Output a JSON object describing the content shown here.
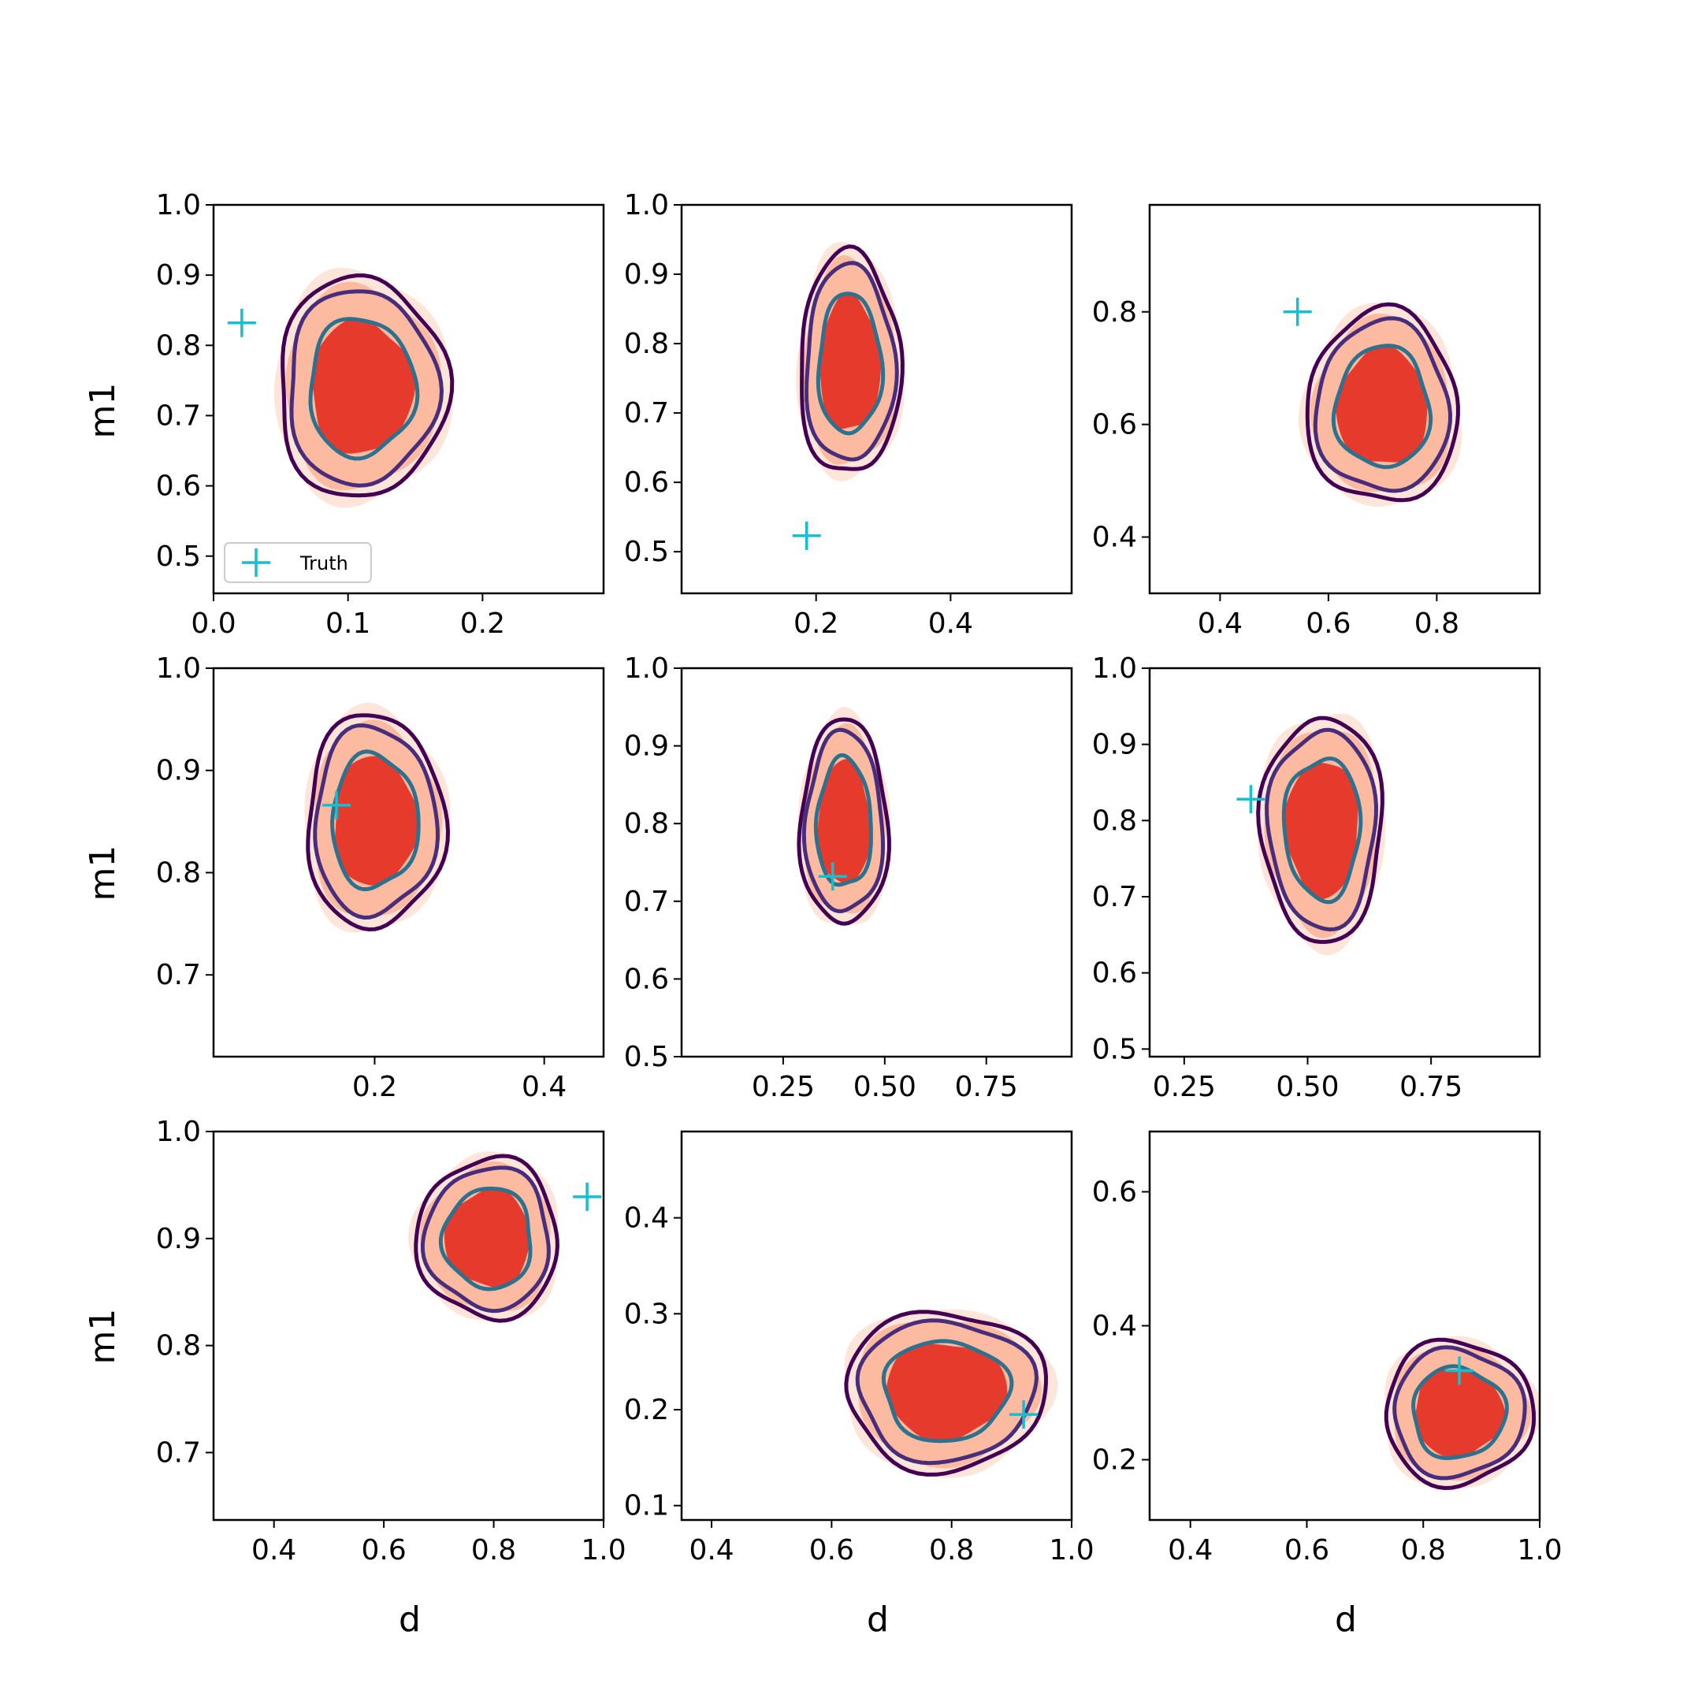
{
  "figure": {
    "xlabel": "d",
    "ylabel": "m1",
    "legend_label": "Truth",
    "legend_position": "lower-left",
    "colors": {
      "fill_outer": "#fee5d9",
      "fill_middle": "#fcbba1",
      "fill_inner": "#e63a2c",
      "contour_outer": "#440154",
      "contour_middle": "#472d7b",
      "contour_inner": "#2c728e",
      "truth_marker": "#17becf"
    }
  },
  "chart_data": [
    {
      "type": "contour",
      "row": 0,
      "col": 0,
      "xlim": [
        0.0,
        0.29
      ],
      "ylim": [
        0.447,
        1.0
      ],
      "xticks": [
        "0.0",
        "0.1",
        "0.2"
      ],
      "xtick_values": [
        0.0,
        0.1,
        0.2
      ],
      "yticks": [
        "0.5",
        "0.6",
        "0.7",
        "0.8",
        "0.9",
        "1.0"
      ],
      "ytick_values": [
        0.5,
        0.6,
        0.7,
        0.8,
        0.9,
        1.0
      ],
      "center": [
        0.11,
        0.74
      ],
      "spread": [
        0.06,
        0.15
      ],
      "tilt": -0.8,
      "truth": [
        0.021,
        0.832
      ],
      "legend": true
    },
    {
      "type": "contour",
      "row": 0,
      "col": 1,
      "xlim": [
        0.0,
        0.58
      ],
      "ylim": [
        0.44,
        1.0
      ],
      "xticks": [
        "0.2",
        "0.4"
      ],
      "xtick_values": [
        0.2,
        0.4
      ],
      "yticks": [
        "0.5",
        "0.6",
        "0.7",
        "0.8",
        "0.9",
        "1.0"
      ],
      "ytick_values": [
        0.5,
        0.6,
        0.7,
        0.8,
        0.9,
        1.0
      ],
      "center": [
        0.25,
        0.77
      ],
      "spread": [
        0.07,
        0.15
      ],
      "tilt": -0.75,
      "truth": [
        0.186,
        0.523
      ],
      "legend": false
    },
    {
      "type": "contour",
      "row": 0,
      "col": 2,
      "xlim": [
        0.27,
        0.99
      ],
      "ylim": [
        0.3,
        0.99
      ],
      "xticks": [
        "0.4",
        "0.6",
        "0.8"
      ],
      "xtick_values": [
        0.4,
        0.6,
        0.8
      ],
      "yticks": [
        "0.4",
        "0.6",
        "0.8"
      ],
      "ytick_values": [
        0.4,
        0.6,
        0.8
      ],
      "center": [
        0.7,
        0.63
      ],
      "spread": [
        0.13,
        0.16
      ],
      "tilt": -0.75,
      "truth": [
        0.543,
        0.8
      ],
      "legend": false
    },
    {
      "type": "contour",
      "row": 1,
      "col": 0,
      "xlim": [
        0.01,
        0.47
      ],
      "ylim": [
        0.62,
        1.0
      ],
      "xticks": [
        "0.2",
        "0.4"
      ],
      "xtick_values": [
        0.2,
        0.4
      ],
      "yticks": [
        "0.7",
        "0.8",
        "0.9",
        "1.0"
      ],
      "ytick_values": [
        0.7,
        0.8,
        0.9,
        1.0
      ],
      "center": [
        0.2,
        0.85
      ],
      "spread": [
        0.07,
        0.09
      ],
      "tilt": 0.55,
      "truth": [
        0.155,
        0.866
      ],
      "legend": false
    },
    {
      "type": "contour",
      "row": 1,
      "col": 1,
      "xlim": [
        0.0,
        0.96
      ],
      "ylim": [
        0.5,
        1.0
      ],
      "xticks": [
        "0.25",
        "0.50",
        "0.75"
      ],
      "xtick_values": [
        0.25,
        0.5,
        0.75
      ],
      "yticks": [
        "0.5",
        "0.6",
        "0.7",
        "0.8",
        "0.9",
        "1.0"
      ],
      "ytick_values": [
        0.5,
        0.6,
        0.7,
        0.8,
        0.9,
        1.0
      ],
      "center": [
        0.4,
        0.8
      ],
      "spread": [
        0.09,
        0.11
      ],
      "tilt": 0.45,
      "truth": [
        0.372,
        0.732
      ],
      "legend": false
    },
    {
      "type": "contour",
      "row": 1,
      "col": 2,
      "xlim": [
        0.18,
        0.97
      ],
      "ylim": [
        0.49,
        1.0
      ],
      "xticks": [
        "0.25",
        "0.50",
        "0.75"
      ],
      "xtick_values": [
        0.25,
        0.5,
        0.75
      ],
      "yticks": [
        "0.5",
        "0.6",
        "0.7",
        "0.8",
        "0.9",
        "1.0"
      ],
      "ytick_values": [
        0.5,
        0.6,
        0.7,
        0.8,
        0.9,
        1.0
      ],
      "center": [
        0.53,
        0.79
      ],
      "spread": [
        0.1,
        0.12
      ],
      "tilt": -0.35,
      "truth": [
        0.385,
        0.828
      ],
      "legend": false
    },
    {
      "type": "contour",
      "row": 2,
      "col": 0,
      "xlim": [
        0.29,
        1.0
      ],
      "ylim": [
        0.637,
        1.0
      ],
      "xticks": [
        "0.4",
        "0.6",
        "0.8",
        "1.0"
      ],
      "xtick_values": [
        0.4,
        0.6,
        0.8,
        1.0
      ],
      "yticks": [
        "0.7",
        "0.8",
        "0.9",
        "1.0"
      ],
      "ytick_values": [
        0.7,
        0.8,
        0.9,
        1.0
      ],
      "center": [
        0.79,
        0.9
      ],
      "spread": [
        0.12,
        0.07
      ],
      "tilt": 0.75,
      "truth": [
        0.97,
        0.939
      ],
      "legend": false
    },
    {
      "type": "contour",
      "row": 2,
      "col": 1,
      "xlim": [
        0.35,
        1.0
      ],
      "ylim": [
        0.085,
        0.49
      ],
      "xticks": [
        "0.4",
        "0.6",
        "0.8",
        "1.0"
      ],
      "xtick_values": [
        0.4,
        0.6,
        0.8,
        1.0
      ],
      "yticks": [
        "0.1",
        "0.2",
        "0.3",
        "0.4"
      ],
      "ytick_values": [
        0.1,
        0.2,
        0.3,
        0.4
      ],
      "center": [
        0.79,
        0.22
      ],
      "spread": [
        0.13,
        0.065
      ],
      "tilt": 0.0,
      "truth": [
        0.92,
        0.195
      ],
      "legend": false
    },
    {
      "type": "contour",
      "row": 2,
      "col": 2,
      "xlim": [
        0.33,
        1.0
      ],
      "ylim": [
        0.11,
        0.69
      ],
      "xticks": [
        "0.4",
        "0.6",
        "0.8",
        "1.0"
      ],
      "xtick_values": [
        0.4,
        0.6,
        0.8,
        1.0
      ],
      "yticks": [
        "0.2",
        "0.4",
        "0.6"
      ],
      "ytick_values": [
        0.2,
        0.4,
        0.6
      ],
      "center": [
        0.86,
        0.27
      ],
      "spread": [
        0.1,
        0.085
      ],
      "tilt": 0.15,
      "truth": [
        0.862,
        0.333
      ],
      "legend": false
    }
  ]
}
